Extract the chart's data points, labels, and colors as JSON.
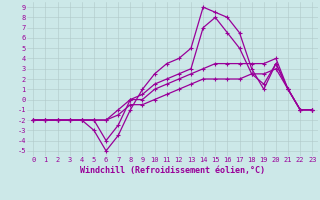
{
  "xlabel": "Windchill (Refroidissement éolien,°C)",
  "background_color": "#cce8e8",
  "grid_color": "#b0c8c8",
  "line_color": "#990099",
  "xlim": [
    -0.5,
    23.5
  ],
  "ylim": [
    -5.5,
    9.5
  ],
  "xticks": [
    0,
    1,
    2,
    3,
    4,
    5,
    6,
    7,
    8,
    9,
    10,
    11,
    12,
    13,
    14,
    15,
    16,
    17,
    18,
    19,
    20,
    21,
    22,
    23
  ],
  "yticks": [
    -5,
    -4,
    -3,
    -2,
    -1,
    0,
    1,
    2,
    3,
    4,
    5,
    6,
    7,
    8,
    9
  ],
  "series": [
    {
      "x": [
        0,
        1,
        2,
        3,
        4,
        5,
        6,
        7,
        8,
        9,
        10,
        11,
        12,
        13,
        14,
        15,
        16,
        17,
        18,
        19,
        20,
        21,
        22,
        23
      ],
      "y": [
        -2,
        -2,
        -2,
        -2,
        -2,
        -3,
        -5,
        -3.5,
        -1,
        1,
        2.5,
        3.5,
        4,
        5,
        9,
        8.5,
        8,
        6.5,
        3,
        1,
        3.5,
        1,
        -1,
        -1
      ]
    },
    {
      "x": [
        0,
        1,
        2,
        3,
        4,
        5,
        6,
        7,
        8,
        9,
        10,
        11,
        12,
        13,
        14,
        15,
        16,
        17,
        18,
        19,
        20,
        21,
        22,
        23
      ],
      "y": [
        -2,
        -2,
        -2,
        -2,
        -2,
        -2,
        -4,
        -2.5,
        0,
        0.5,
        1.5,
        2,
        2.5,
        3,
        7,
        8,
        6.5,
        5,
        2.5,
        1.5,
        3.5,
        1,
        -1,
        -1
      ]
    },
    {
      "x": [
        0,
        1,
        2,
        3,
        4,
        5,
        6,
        7,
        8,
        9,
        10,
        11,
        12,
        13,
        14,
        15,
        16,
        17,
        18,
        19,
        20,
        21,
        22,
        23
      ],
      "y": [
        -2,
        -2,
        -2,
        -2,
        -2,
        -2,
        -2,
        -1,
        0,
        0,
        1,
        1.5,
        2,
        2.5,
        3,
        3.5,
        3.5,
        3.5,
        3.5,
        3.5,
        4,
        1,
        -1,
        -1
      ]
    },
    {
      "x": [
        0,
        1,
        2,
        3,
        4,
        5,
        6,
        7,
        8,
        9,
        10,
        11,
        12,
        13,
        14,
        15,
        16,
        17,
        18,
        19,
        20,
        21,
        22,
        23
      ],
      "y": [
        -2,
        -2,
        -2,
        -2,
        -2,
        -2,
        -2,
        -1.5,
        -0.5,
        -0.5,
        0,
        0.5,
        1,
        1.5,
        2,
        2,
        2,
        2,
        2.5,
        2.5,
        3,
        1,
        -1,
        -1
      ]
    }
  ],
  "tick_fontsize": 5,
  "xlabel_fontsize": 6,
  "marker": "+",
  "markersize": 3,
  "linewidth": 0.9
}
